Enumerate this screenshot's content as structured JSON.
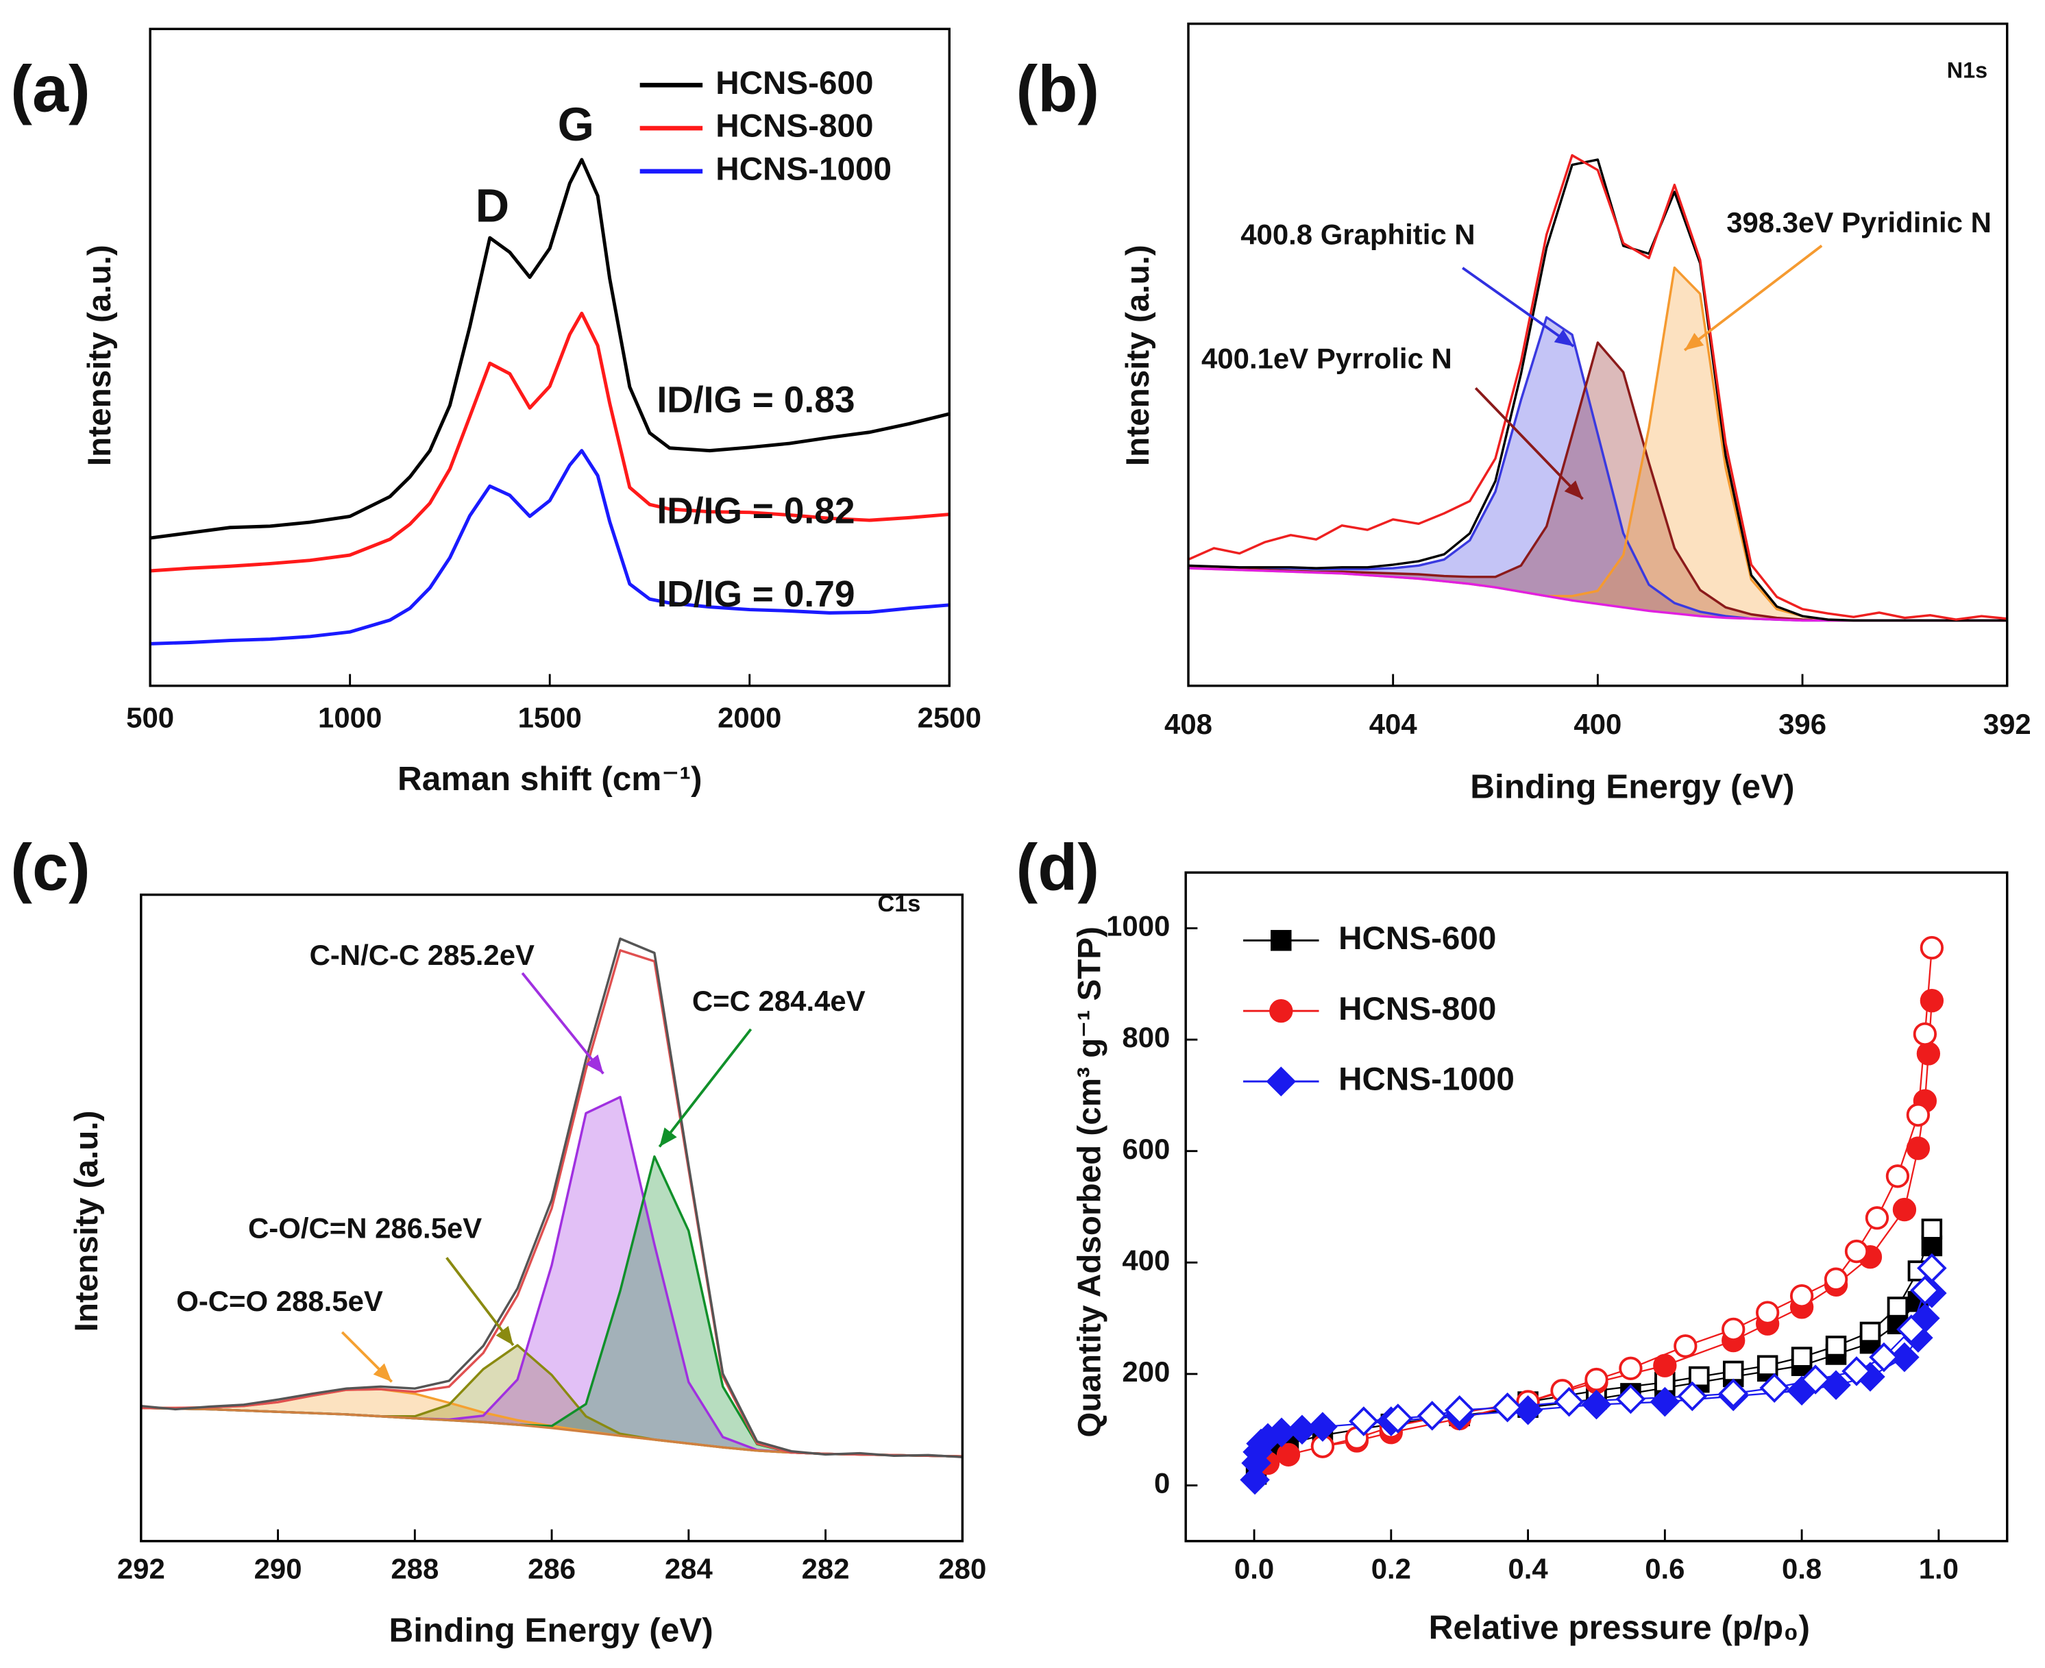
{
  "chart_data": [
    {
      "type": "line",
      "panel_label": "(a)",
      "xlabel": "Raman shift (cm⁻¹)",
      "ylabel": "Intensity (a.u.)",
      "x": [
        500,
        600,
        700,
        800,
        900,
        1000,
        1100,
        1150,
        1200,
        1250,
        1300,
        1350,
        1400,
        1450,
        1500,
        1550,
        1580,
        1620,
        1650,
        1700,
        1750,
        1800,
        1900,
        2000,
        2100,
        2200,
        2300,
        2400,
        2500
      ],
      "xlim": [
        500,
        2500
      ],
      "xticks": [
        500,
        1000,
        1500,
        2000,
        2500
      ],
      "ylim": [
        0,
        100
      ],
      "legend": "upper right",
      "series": [
        {
          "name": "HCNS-600",
          "color": "#000000",
          "values": [
            22.5,
            23.3,
            24.1,
            24.3,
            24.9,
            25.8,
            28.8,
            31.8,
            35.8,
            42.7,
            54.7,
            68.2,
            66.0,
            62.2,
            66.6,
            76.5,
            80.1,
            74.6,
            62.0,
            45.5,
            38.5,
            36.2,
            35.8,
            36.3,
            36.9,
            37.8,
            38.6,
            39.9,
            41.4
          ]
        },
        {
          "name": "HCNS-800",
          "color": "#ff1a1a",
          "values": [
            17.5,
            17.9,
            18.2,
            18.6,
            19.1,
            19.9,
            22.3,
            24.6,
            27.8,
            33.0,
            41.0,
            49.1,
            47.5,
            42.3,
            45.6,
            53.5,
            56.7,
            51.8,
            43.0,
            30.2,
            27.6,
            26.9,
            26.5,
            26.4,
            26.0,
            25.5,
            25.2,
            25.6,
            26.1
          ]
        },
        {
          "name": "HCNS-1000",
          "color": "#1a1aff",
          "values": [
            6.4,
            6.6,
            6.9,
            7.1,
            7.5,
            8.2,
            10.0,
            11.8,
            14.9,
            19.5,
            25.9,
            30.4,
            29.0,
            25.8,
            28.2,
            33.6,
            35.8,
            32.0,
            25.0,
            15.5,
            13.2,
            12.6,
            12.0,
            11.6,
            11.4,
            11.1,
            11.2,
            11.8,
            12.3
          ]
        }
      ],
      "annotations": [
        {
          "text": "D",
          "color": "#000000"
        },
        {
          "text": "G",
          "color": "#000000"
        },
        {
          "text": "ID/IG = 0.83",
          "color": "#000000"
        },
        {
          "text": "ID/IG = 0.82",
          "color": "#000000"
        },
        {
          "text": "ID/IG = 0.79",
          "color": "#000000"
        }
      ]
    },
    {
      "type": "line",
      "panel_label": "(b)",
      "xlabel": "Binding Energy (eV)",
      "ylabel": "Intensity (a.u.)",
      "x": [
        408,
        407.5,
        407,
        406.5,
        406,
        405.5,
        405,
        404.5,
        404,
        403.5,
        403,
        402.5,
        402,
        401.5,
        401,
        400.5,
        400,
        399.5,
        399,
        398.5,
        398,
        397.5,
        397,
        396.5,
        396,
        395.5,
        395,
        394.5,
        394,
        393.5,
        393,
        392.5,
        392
      ],
      "xlim": [
        408,
        392
      ],
      "xticks": [
        408,
        404,
        400,
        396,
        392
      ],
      "ylim": [
        4,
        80
      ],
      "series": [
        {
          "color": "#3a3ae0",
          "filled": true,
          "values": [
            17.7,
            17.6,
            17.5,
            17.5,
            17.5,
            17.4,
            17.4,
            17.4,
            17.5,
            17.8,
            18.5,
            20.7,
            26.3,
            36.8,
            46.3,
            44.3,
            32.9,
            21.5,
            15.6,
            13.5,
            12.5,
            12.0,
            11.7,
            11.6,
            11.5,
            11.5,
            11.5,
            11.5,
            11.5,
            11.5,
            11.5,
            11.5,
            11.5
          ]
        },
        {
          "color": "#8b1a1a",
          "filled": true,
          "values": [
            17.6,
            17.5,
            17.4,
            17.3,
            17.2,
            17.1,
            17.1,
            17.0,
            16.9,
            16.8,
            16.6,
            16.5,
            16.5,
            17.8,
            22.3,
            32.8,
            43.4,
            40.0,
            29.6,
            19.8,
            15.0,
            13.0,
            12.2,
            11.8,
            11.6,
            11.5,
            11.5,
            11.5,
            11.5,
            11.5,
            11.5,
            11.5,
            11.5
          ]
        },
        {
          "color": "#f59a30",
          "filled": true,
          "values": [
            17.5,
            17.4,
            17.3,
            17.2,
            17.1,
            17.0,
            16.9,
            16.7,
            16.5,
            16.3,
            16.0,
            15.7,
            15.3,
            14.8,
            14.3,
            14.3,
            14.9,
            19.0,
            33.6,
            52.0,
            49.0,
            29.0,
            16.2,
            12.8,
            12.0,
            11.5,
            11.5,
            11.5,
            11.5,
            11.5,
            11.5,
            11.5,
            11.5
          ]
        },
        {
          "color": "#e020e0",
          "values": [
            17.5,
            17.4,
            17.3,
            17.2,
            17.1,
            17.0,
            16.9,
            16.7,
            16.5,
            16.3,
            16.0,
            15.7,
            15.3,
            14.8,
            14.3,
            13.8,
            13.4,
            13.0,
            12.6,
            12.3,
            12.0,
            11.8,
            11.7,
            11.6,
            11.5,
            11.5,
            11.5,
            11.5,
            11.5,
            11.5,
            11.5,
            11.5,
            11.5
          ]
        },
        {
          "color": "#000000",
          "values": [
            17.8,
            17.7,
            17.6,
            17.6,
            17.6,
            17.5,
            17.6,
            17.6,
            17.9,
            18.3,
            19.1,
            21.5,
            27.5,
            39.8,
            54.3,
            63.8,
            64.4,
            54.5,
            53.6,
            60.7,
            52.5,
            30.4,
            16.7,
            13.1,
            12.0,
            11.6,
            11.5,
            11.5,
            11.5,
            11.5,
            11.5,
            11.5,
            11.5
          ]
        },
        {
          "color": "#ee2020",
          "values": [
            18.5,
            19.8,
            19.2,
            20.5,
            21.3,
            20.8,
            22.4,
            21.9,
            23.1,
            22.6,
            23.8,
            25.2,
            30.1,
            41.2,
            55.8,
            64.9,
            63.2,
            54.8,
            53.1,
            61.5,
            52.9,
            31.8,
            17.9,
            14.2,
            12.8,
            12.3,
            11.9,
            12.4,
            11.8,
            12.1,
            11.6,
            12.0,
            11.7
          ]
        }
      ],
      "annotations": [
        {
          "text": "N1s",
          "color": "#000000"
        },
        {
          "text": "400.8 Graphitic N",
          "color": "#3030e0"
        },
        {
          "text": "398.3eV Pyridinic N",
          "color": "#f59a30"
        },
        {
          "text": "400.1eV Pyrrolic N",
          "color": "#8b1a1a"
        }
      ]
    },
    {
      "type": "line",
      "panel_label": "(c)",
      "xlabel": "Binding Energy (eV)",
      "ylabel": "Intensity (a.u.)",
      "x": [
        292,
        291.5,
        291,
        290.5,
        290,
        289.5,
        289,
        288.5,
        288,
        287.5,
        287,
        286.5,
        286,
        285.5,
        285,
        284.5,
        284,
        283.5,
        283,
        282.5,
        282,
        281.5,
        281,
        280.5,
        280
      ],
      "xlim": [
        292,
        280
      ],
      "xticks": [
        292,
        290,
        288,
        286,
        284,
        282,
        280
      ],
      "ylim": [
        0,
        100
      ],
      "series": [
        {
          "color": "#f5a030",
          "filled": true,
          "values": [
            20.6,
            20.6,
            20.7,
            20.9,
            21.5,
            22.5,
            23.4,
            23.5,
            22.8,
            21.4,
            19.9,
            18.7,
            17.8,
            17.0,
            16.3,
            15.7,
            15.1,
            14.5,
            14.0,
            13.7,
            13.5,
            13.4,
            13.3,
            13.2,
            13.1
          ]
        },
        {
          "color": "#8a8a10",
          "filled": true,
          "values": [
            20.6,
            20.5,
            20.4,
            20.2,
            20.0,
            19.8,
            19.6,
            19.3,
            19.3,
            21.1,
            26.6,
            30.3,
            25.7,
            19.3,
            16.6,
            15.7,
            15.1,
            14.5,
            14.0,
            13.7,
            13.5,
            13.4,
            13.3,
            13.2,
            13.1
          ]
        },
        {
          "color": "#a030e0",
          "filled": true,
          "values": [
            20.6,
            20.5,
            20.4,
            20.2,
            20.0,
            19.8,
            19.6,
            19.3,
            19.0,
            18.8,
            19.4,
            25.0,
            42.7,
            66.2,
            68.7,
            45.9,
            24.6,
            16.1,
            14.1,
            13.7,
            13.5,
            13.4,
            13.3,
            13.2,
            13.1
          ]
        },
        {
          "color": "#10902a",
          "filled": true,
          "values": [
            20.6,
            20.5,
            20.4,
            20.2,
            20.0,
            19.8,
            19.6,
            19.3,
            19.0,
            18.7,
            18.4,
            18.0,
            17.8,
            21.2,
            38.7,
            59.5,
            48.0,
            23.9,
            15.0,
            13.7,
            13.5,
            13.4,
            13.3,
            13.2,
            13.1
          ]
        },
        {
          "color": "#d08040",
          "values": [
            20.6,
            20.5,
            20.4,
            20.2,
            20.0,
            19.8,
            19.6,
            19.3,
            19.0,
            18.7,
            18.4,
            18.0,
            17.5,
            16.9,
            16.3,
            15.7,
            15.1,
            14.5,
            14.0,
            13.7,
            13.5,
            13.4,
            13.3,
            13.2,
            13.1
          ]
        },
        {
          "color": "#e05050",
          "values": [
            20.6,
            20.6,
            20.7,
            20.9,
            21.5,
            22.5,
            23.4,
            23.5,
            23.1,
            23.9,
            29.1,
            38.0,
            51.5,
            73.0,
            91.4,
            89.7,
            57.5,
            25.5,
            15.1,
            13.7,
            13.5,
            13.4,
            13.3,
            13.2,
            13.1
          ]
        },
        {
          "color": "#555555",
          "values": [
            20.9,
            20.4,
            20.8,
            21.1,
            21.9,
            22.8,
            23.6,
            23.9,
            23.6,
            24.8,
            30.2,
            39.1,
            52.8,
            74.5,
            93.2,
            91.0,
            58.1,
            25.9,
            15.4,
            13.9,
            13.4,
            13.6,
            13.2,
            13.3,
            13.0
          ]
        }
      ],
      "annotations": [
        {
          "text": "C1s",
          "color": "#000000"
        },
        {
          "text": "C-N/C-C 285.2eV",
          "color": "#a030e0"
        },
        {
          "text": "C=C 284.4eV",
          "color": "#10902a"
        },
        {
          "text": "C-O/C=N 286.5eV",
          "color": "#8a8a10"
        },
        {
          "text": "O-C=O 288.5eV",
          "color": "#f5a030"
        }
      ]
    },
    {
      "type": "scatter",
      "panel_label": "(d)",
      "xlabel": "Relative pressure (p/p₀)",
      "ylabel": "Quantity Adsorbed (cm³ g⁻¹ STP)",
      "xlim": [
        -0.1,
        1.1
      ],
      "xticks": [
        {
          "value": 0,
          "label": "0.0"
        },
        {
          "value": 0.2,
          "label": "0.2"
        },
        {
          "value": 0.4,
          "label": "0.4"
        },
        {
          "value": 0.6,
          "label": "0.6"
        },
        {
          "value": 0.8,
          "label": "0.8"
        },
        {
          "value": 1,
          "label": "1.0"
        }
      ],
      "ylim": [
        -100,
        1100
      ],
      "yticks": [
        0,
        200,
        400,
        600,
        800,
        1000
      ],
      "legend": "upper left",
      "series": [
        {
          "name": "HCNS-600",
          "color": "#000000",
          "marker": "square",
          "x": [
            0.003,
            0.01,
            0.02,
            0.05,
            0.1,
            0.2,
            0.3,
            0.4,
            0.5,
            0.55,
            0.6,
            0.65,
            0.7,
            0.75,
            0.8,
            0.85,
            0.9,
            0.94,
            0.97,
            0.99
          ],
          "values": [
            20,
            55,
            65,
            75,
            90,
            110,
            125,
            140,
            155,
            165,
            175,
            185,
            195,
            205,
            215,
            235,
            255,
            290,
            330,
            430
          ],
          "desorption_x": [
            0.99,
            0.97,
            0.94,
            0.9,
            0.85,
            0.8,
            0.75,
            0.7,
            0.65,
            0.6,
            0.5,
            0.4
          ],
          "desorption_values": [
            460,
            385,
            320,
            275,
            250,
            230,
            215,
            205,
            195,
            185,
            170,
            150
          ]
        },
        {
          "name": "HCNS-800",
          "color": "#ee1c1c",
          "marker": "circle",
          "x": [
            0.02,
            0.05,
            0.1,
            0.15,
            0.2,
            0.3,
            0.4,
            0.5,
            0.6,
            0.7,
            0.75,
            0.8,
            0.85,
            0.9,
            0.95,
            0.97,
            0.98,
            0.985,
            0.99
          ],
          "values": [
            40,
            55,
            70,
            80,
            95,
            120,
            150,
            185,
            215,
            260,
            290,
            320,
            360,
            410,
            495,
            605,
            690,
            775,
            870
          ],
          "desorption_x": [
            0.99,
            0.98,
            0.97,
            0.94,
            0.91,
            0.88,
            0.85,
            0.8,
            0.75,
            0.7,
            0.63,
            0.55,
            0.5,
            0.45,
            0.4,
            0.3,
            0.2,
            0.15,
            0.1
          ],
          "desorption_values": [
            965,
            810,
            665,
            555,
            480,
            420,
            370,
            340,
            310,
            280,
            250,
            210,
            190,
            170,
            150,
            130,
            105,
            85,
            70
          ]
        },
        {
          "name": "HCNS-1000",
          "color": "#1a1aee",
          "marker": "diamond",
          "x": [
            0.001,
            0.003,
            0.005,
            0.01,
            0.02,
            0.04,
            0.07,
            0.1,
            0.2,
            0.3,
            0.4,
            0.5,
            0.6,
            0.7,
            0.8,
            0.85,
            0.9,
            0.95,
            0.97,
            0.98,
            0.99
          ],
          "values": [
            10,
            40,
            60,
            75,
            85,
            95,
            100,
            105,
            115,
            125,
            135,
            145,
            150,
            160,
            170,
            180,
            195,
            230,
            265,
            300,
            345
          ],
          "desorption_x": [
            0.99,
            0.98,
            0.96,
            0.92,
            0.88,
            0.82,
            0.76,
            0.7,
            0.64,
            0.55,
            0.46,
            0.37,
            0.3,
            0.26,
            0.21,
            0.16
          ],
          "desorption_values": [
            390,
            350,
            280,
            230,
            205,
            190,
            175,
            165,
            160,
            155,
            150,
            140,
            135,
            125,
            120,
            115
          ]
        }
      ]
    }
  ]
}
